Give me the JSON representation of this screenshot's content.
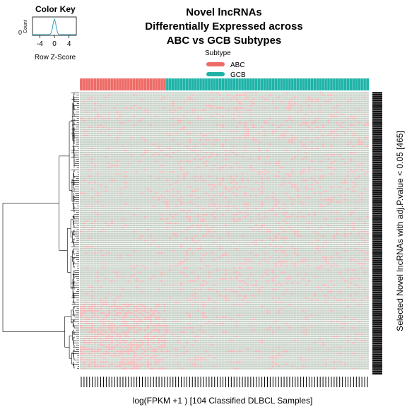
{
  "chart_data": {
    "type": "heatmap",
    "title_lines": [
      "Novel lncRNAs",
      "Differentially Expressed across",
      "ABC vs GCB Subtypes"
    ],
    "xlabel": "log(FPKM +1 ) [104 Classified DLBCL Samples]",
    "ylabel": "Selected Novel lncRNAs with adj.P.value < 0.05 [465]",
    "color_key": {
      "title": "Color Key",
      "xlabel": "Row Z-Score",
      "ylabel": "Count",
      "y_tick": "0",
      "x_ticks": [
        "-4",
        "0",
        "4"
      ],
      "x_tick_values": [
        -4,
        0,
        4
      ],
      "xlim": [
        -6,
        6
      ],
      "colors": {
        "low": "#2f7f3f",
        "mid": "#000000",
        "high": "#d22020"
      },
      "density_color": "#3aa3b5"
    },
    "annotation": {
      "title": "Subtype",
      "groups": [
        {
          "name": "ABC",
          "color": "#ee6b66",
          "fraction": 0.3
        },
        {
          "name": "GCB",
          "color": "#1fb3a8",
          "fraction": 0.7
        }
      ]
    },
    "n_samples": 104,
    "n_genes": 465,
    "cell_base_color": "#c8d2c8",
    "cell_up_color": "#f0b4b4"
  }
}
